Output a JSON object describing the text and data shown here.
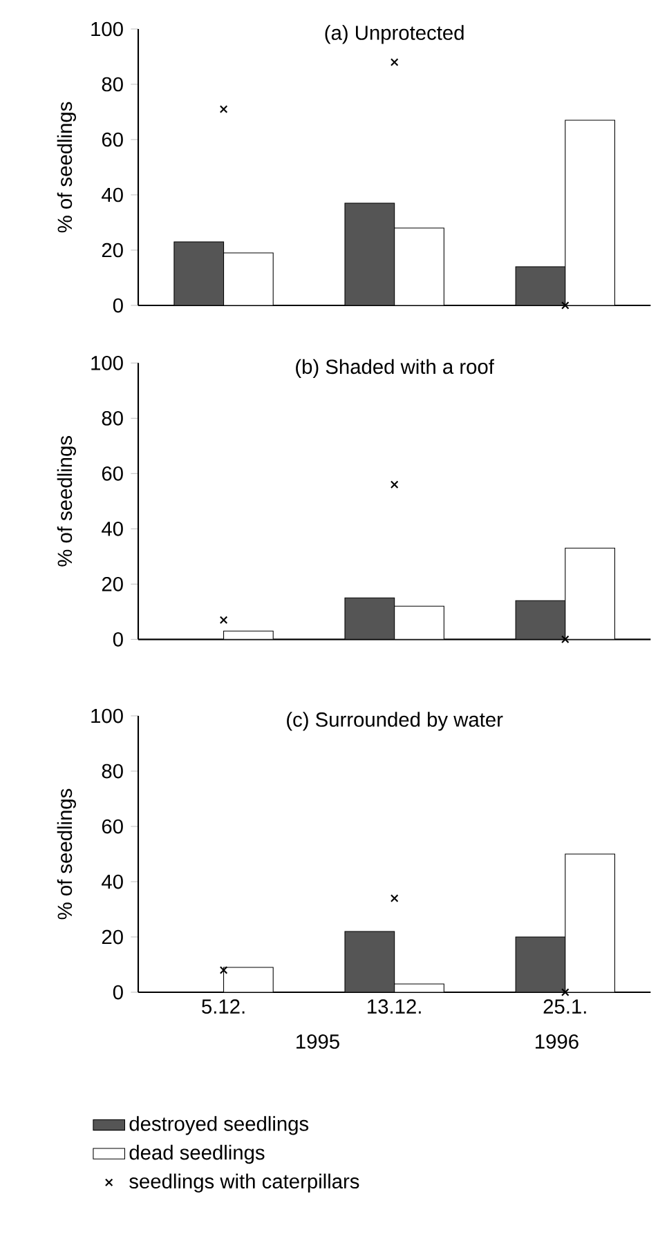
{
  "chart_data": [
    {
      "type": "bar",
      "title": "(a) Unprotected",
      "ylabel": "% of seedlings",
      "categories": [
        "5.12.",
        "13.12.",
        "25.1."
      ],
      "ylim": [
        0,
        100
      ],
      "yticks": [
        0,
        20,
        40,
        60,
        80,
        100
      ],
      "tick_labels": "y",
      "series": [
        {
          "color": "#555555",
          "values": [
            23,
            37,
            14
          ]
        },
        {
          "color": "#ffffff",
          "values": [
            19,
            28,
            67
          ]
        },
        {
          "type": "scatter",
          "color": "#000000",
          "marker": "cross",
          "x": [
            "5.12.",
            "13.12.",
            "25.1."
          ],
          "values": [
            71,
            88,
            0
          ]
        }
      ]
    },
    {
      "type": "bar",
      "title": "(b) Shaded with a roof",
      "ylabel": "% of seedlings",
      "categories": [
        "5.12.",
        "13.12.",
        "25.1."
      ],
      "ylim": [
        0,
        100
      ],
      "yticks": [
        0,
        20,
        40,
        60,
        80,
        100
      ],
      "tick_labels": "y",
      "series": [
        {
          "color": "#555555",
          "values": [
            null,
            15,
            14
          ]
        },
        {
          "color": "#ffffff",
          "values": [
            3,
            12,
            33
          ]
        },
        {
          "type": "scatter",
          "color": "#000000",
          "marker": "cross",
          "x": [
            "5.12.",
            "13.12.",
            "25.1."
          ],
          "values": [
            7,
            56,
            0
          ]
        }
      ]
    },
    {
      "type": "bar",
      "title": "(c) Surrounded by water",
      "ylabel": "% of seedlings",
      "categories": [
        "5.12.",
        "13.12.",
        "25.1."
      ],
      "ylim": [
        0,
        100
      ],
      "yticks": [
        0,
        20,
        40,
        60,
        80,
        100
      ],
      "legend": "bottom",
      "annotations": [
        "1995",
        "1996"
      ],
      "series": [
        {
          "name": "destroyed seedlings",
          "color": "#555555",
          "values": [
            null,
            22,
            20
          ]
        },
        {
          "name": "dead seedlings",
          "color": "#ffffff",
          "values": [
            9,
            3,
            50
          ]
        },
        {
          "type": "scatter",
          "name": "seedlings with caterpillars",
          "color": "#000000",
          "marker": "cross",
          "x": [
            "5.12.",
            "13.12.",
            "25.1."
          ],
          "values": [
            8,
            34,
            0
          ]
        }
      ]
    }
  ]
}
